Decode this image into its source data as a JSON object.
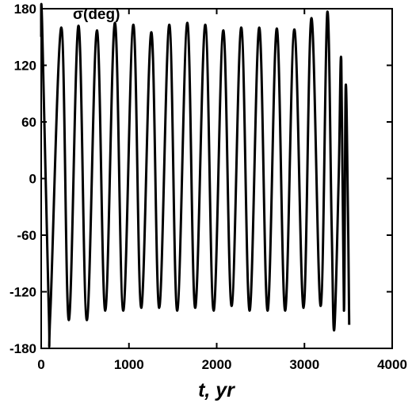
{
  "chart_data": {
    "type": "line",
    "title": "",
    "xlabel": "t, yr",
    "ylabel": "σ(deg)",
    "xlim": [
      0,
      4000
    ],
    "ylim": [
      -180,
      180
    ],
    "xticks": [
      0,
      1000,
      2000,
      3000,
      4000
    ],
    "xtick_labels": [
      "0",
      "1000",
      "2000",
      "3000",
      "4000"
    ],
    "yticks": [
      -180,
      -120,
      -60,
      0,
      60,
      120,
      180
    ],
    "ytick_labels": [
      "-180",
      "-120",
      "-60",
      "0",
      "60",
      "120",
      "180"
    ],
    "grid": false,
    "line_color": "#000000",
    "series": [
      {
        "x": [
          0,
          10,
          85,
          105,
          230,
          315,
          425,
          520,
          635,
          730,
          840,
          935,
          1050,
          1140,
          1255,
          1345,
          1460,
          1550,
          1665,
          1755,
          1870,
          1965,
          2075,
          2170,
          2280,
          2375,
          2485,
          2580,
          2685,
          2780,
          2885,
          2990,
          3080,
          3185,
          3260,
          3310,
          3340,
          3390,
          3420,
          3450,
          3470,
          3495,
          3510
        ],
        "y": [
          150,
          165,
          -135,
          -140,
          160,
          -150,
          162,
          -150,
          157,
          -140,
          165,
          -140,
          163,
          -137,
          155,
          -137,
          163,
          -140,
          165,
          -137,
          163,
          -140,
          157,
          -135,
          160,
          -140,
          160,
          -140,
          159,
          -140,
          158,
          -137,
          170,
          -135,
          176,
          -50,
          -160,
          0,
          125,
          -140,
          97,
          -30,
          -155
        ]
      }
    ]
  }
}
